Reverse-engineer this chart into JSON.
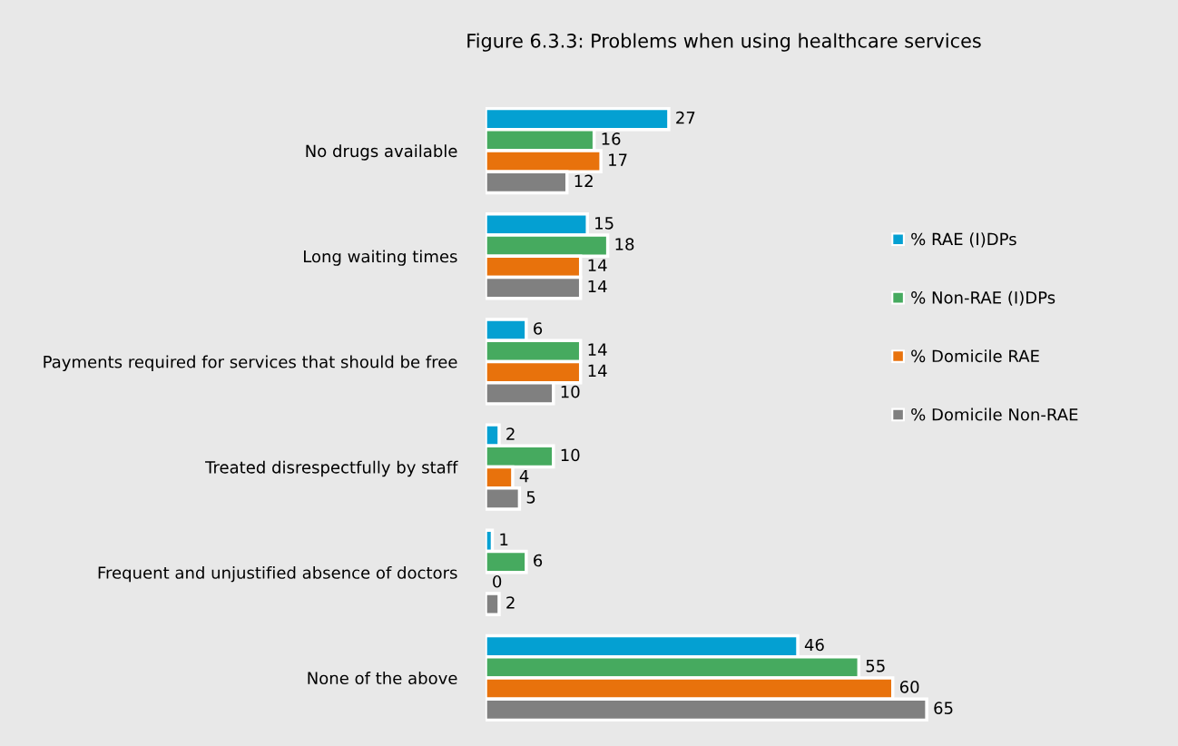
{
  "chart_data": {
    "type": "bar",
    "orientation": "horizontal",
    "title": "Figure 6.3.3: Problems when using healthcare services",
    "categories": [
      "No drugs available",
      "Long waiting times",
      "Payments required for services that should be free",
      "Treated disrespectfully by staff",
      "Frequent and unjustified absence of doctors",
      "None of the above"
    ],
    "series": [
      {
        "name": "% RAE (I)DPs",
        "color": "#04a0d2",
        "values": [
          27,
          15,
          6,
          2,
          1,
          46
        ]
      },
      {
        "name": "% Non-RAE (I)DPs",
        "color": "#46aa5f",
        "values": [
          16,
          18,
          14,
          10,
          6,
          55
        ]
      },
      {
        "name": "% Domicile RAE",
        "color": "#e8720c",
        "values": [
          17,
          14,
          14,
          4,
          0,
          60
        ]
      },
      {
        "name": "% Domicile Non-RAE",
        "color": "#808080",
        "values": [
          12,
          14,
          10,
          5,
          2,
          65
        ]
      }
    ],
    "data_labels": true,
    "legend": "right",
    "grid": false
  }
}
